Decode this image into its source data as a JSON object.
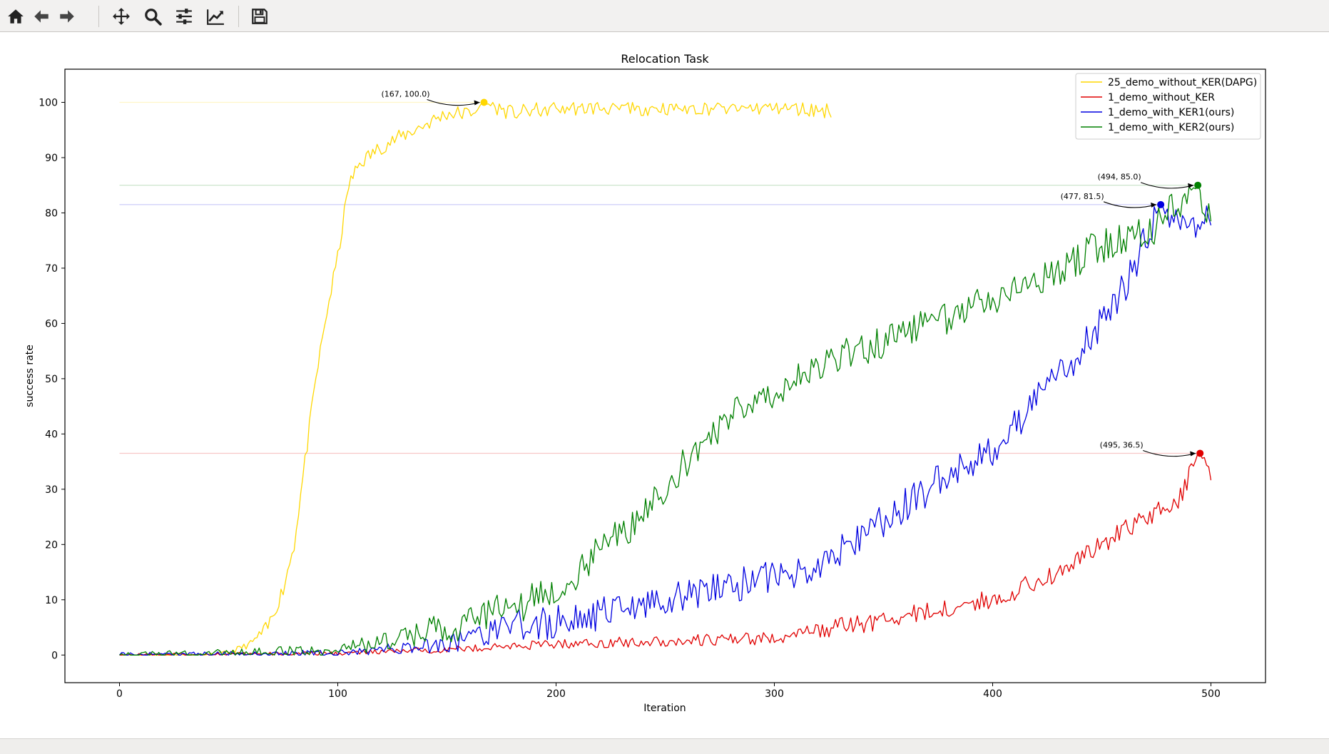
{
  "toolbar": {
    "buttons": [
      {
        "name": "home-button",
        "icon": "home-icon"
      },
      {
        "name": "back-button",
        "icon": "arrow-left-icon"
      },
      {
        "name": "forward-button",
        "icon": "arrow-right-icon"
      },
      {
        "name": "pan-button",
        "icon": "move-arrows-icon"
      },
      {
        "name": "zoom-button",
        "icon": "magnifier-icon"
      },
      {
        "name": "subplots-button",
        "icon": "sliders-icon"
      },
      {
        "name": "edit-axes-button",
        "icon": "line-chart-icon"
      },
      {
        "name": "save-button",
        "icon": "floppy-disk-icon"
      }
    ]
  },
  "chart_data": {
    "type": "line",
    "title": "Relocation Task",
    "xlabel": "Iteration",
    "ylabel": "success rate",
    "xlim": [
      -25,
      525
    ],
    "ylim": [
      -5,
      106
    ],
    "xticks": [
      0,
      100,
      200,
      300,
      400,
      500
    ],
    "yticks": [
      0,
      10,
      20,
      30,
      40,
      50,
      60,
      70,
      80,
      90,
      100
    ],
    "legend_position": "top-right",
    "series": [
      {
        "name": "25_demo_without_KER(DAPG)",
        "color": "#FFD700",
        "anchors": [
          [
            0,
            0
          ],
          [
            40,
            0
          ],
          [
            50,
            0.5
          ],
          [
            60,
            2
          ],
          [
            68,
            5
          ],
          [
            75,
            12
          ],
          [
            80,
            20
          ],
          [
            85,
            35
          ],
          [
            90,
            50
          ],
          [
            95,
            62
          ],
          [
            100,
            72
          ],
          [
            105,
            85
          ],
          [
            110,
            89
          ],
          [
            120,
            92
          ],
          [
            130,
            94
          ],
          [
            140,
            96
          ],
          [
            150,
            98
          ],
          [
            160,
            98
          ],
          [
            167,
            100
          ],
          [
            180,
            98
          ],
          [
            200,
            99
          ],
          [
            250,
            99
          ],
          [
            300,
            99
          ],
          [
            326,
            98.5
          ]
        ],
        "noise": 1.4,
        "end_x": 326
      },
      {
        "name": "1_demo_without_KER",
        "color": "#E00000",
        "anchors": [
          [
            0,
            0
          ],
          [
            100,
            0.3
          ],
          [
            150,
            1
          ],
          [
            200,
            2
          ],
          [
            250,
            2.5
          ],
          [
            300,
            3
          ],
          [
            330,
            5
          ],
          [
            360,
            7
          ],
          [
            400,
            10
          ],
          [
            430,
            15
          ],
          [
            450,
            20
          ],
          [
            470,
            25
          ],
          [
            485,
            28
          ],
          [
            495,
            36.5
          ],
          [
            500,
            33
          ]
        ],
        "noise": 1.8,
        "end_x": 500
      },
      {
        "name": "1_demo_with_KER1(ours)",
        "color": "#0000E0",
        "anchors": [
          [
            0,
            0
          ],
          [
            100,
            0.3
          ],
          [
            150,
            2
          ],
          [
            180,
            5
          ],
          [
            200,
            6
          ],
          [
            230,
            8
          ],
          [
            260,
            11
          ],
          [
            300,
            14
          ],
          [
            320,
            16
          ],
          [
            340,
            22
          ],
          [
            360,
            27
          ],
          [
            380,
            33
          ],
          [
            400,
            37
          ],
          [
            420,
            46
          ],
          [
            440,
            55
          ],
          [
            460,
            66
          ],
          [
            477,
            81.5
          ],
          [
            490,
            77
          ],
          [
            500,
            80
          ]
        ],
        "noise": 3.2,
        "end_x": 500
      },
      {
        "name": "1_demo_with_KER2(ours)",
        "color": "#008000",
        "anchors": [
          [
            0,
            0
          ],
          [
            60,
            0.5
          ],
          [
            100,
            1
          ],
          [
            130,
            3
          ],
          [
            160,
            6
          ],
          [
            190,
            10
          ],
          [
            210,
            15
          ],
          [
            230,
            22
          ],
          [
            250,
            30
          ],
          [
            270,
            40
          ],
          [
            290,
            46
          ],
          [
            310,
            50
          ],
          [
            330,
            54
          ],
          [
            360,
            58
          ],
          [
            390,
            63
          ],
          [
            420,
            68
          ],
          [
            450,
            74
          ],
          [
            470,
            76
          ],
          [
            494,
            85
          ],
          [
            500,
            78
          ]
        ],
        "noise": 3.2,
        "end_x": 500
      }
    ],
    "max_markers": [
      {
        "series": "25_demo_without_KER(DAPG)",
        "x": 167,
        "y": 100.0,
        "label": "(167, 100.0)"
      },
      {
        "series": "1_demo_without_KER",
        "x": 495,
        "y": 36.5,
        "label": "(495, 36.5)"
      },
      {
        "series": "1_demo_with_KER1(ours)",
        "x": 477,
        "y": 81.5,
        "label": "(477, 81.5)"
      },
      {
        "series": "1_demo_with_KER2(ours)",
        "x": 494,
        "y": 85.0,
        "label": "(494, 85.0)"
      }
    ]
  }
}
